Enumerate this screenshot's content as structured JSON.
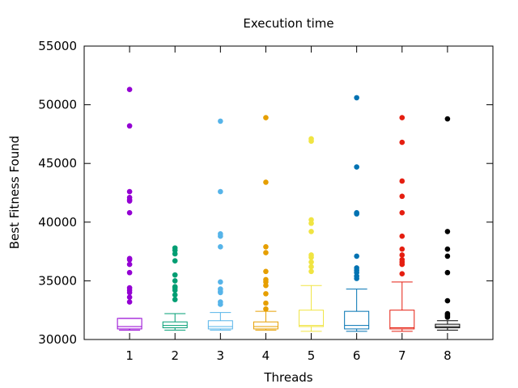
{
  "chart_data": {
    "type": "box",
    "title": "Execution time",
    "xlabel": "Threads",
    "ylabel": "Best Fitness Found",
    "ylim": [
      30000,
      55000
    ],
    "y_ticks": [
      30000,
      35000,
      40000,
      45000,
      50000,
      55000
    ],
    "y_tick_labels": [
      "30000",
      "35000",
      "40000",
      "45000",
      "50000",
      "55000"
    ],
    "grid": false,
    "legend": "none",
    "categories": [
      "1",
      "2",
      "3",
      "4",
      "5",
      "6",
      "7",
      "8"
    ],
    "series": [
      {
        "category": "1",
        "color": "#9400d3",
        "whisker_low": 30800,
        "q1": 30900,
        "median": 31100,
        "q3": 31800,
        "whisker_high": 31800,
        "outliers": [
          51300,
          48200,
          42600,
          42100,
          41900,
          41800,
          40800,
          36900,
          36800,
          36400,
          35700,
          34400,
          34200,
          34000,
          33600,
          33200
        ]
      },
      {
        "category": "2",
        "color": "#009e73",
        "whisker_low": 30800,
        "q1": 31000,
        "median": 31200,
        "q3": 31500,
        "whisker_high": 32200,
        "outliers": [
          37800,
          37600,
          37300,
          36700,
          35500,
          35000,
          34500,
          34400,
          34200,
          33800,
          33400
        ]
      },
      {
        "category": "3",
        "color": "#56b4e9",
        "whisker_low": 30800,
        "q1": 30900,
        "median": 31100,
        "q3": 31600,
        "whisker_high": 32300,
        "outliers": [
          48600,
          42600,
          39000,
          38800,
          37900,
          34900,
          34300,
          34100,
          34000,
          33200,
          33000
        ]
      },
      {
        "category": "4",
        "color": "#e69f00",
        "whisker_low": 30800,
        "q1": 30900,
        "median": 31100,
        "q3": 31500,
        "whisker_high": 32400,
        "outliers": [
          48900,
          43400,
          37900,
          37400,
          35800,
          35100,
          34900,
          34600,
          33900,
          33100,
          32600
        ]
      },
      {
        "category": "5",
        "color": "#f0e442",
        "whisker_low": 30700,
        "q1": 31100,
        "median": 31200,
        "q3": 32500,
        "whisker_high": 34600,
        "outliers": [
          47100,
          46900,
          40200,
          39900,
          39200,
          37200,
          37000,
          36600,
          36200,
          35800
        ]
      },
      {
        "category": "6",
        "color": "#0072b2",
        "whisker_low": 30700,
        "q1": 30900,
        "median": 31200,
        "q3": 32400,
        "whisker_high": 34300,
        "outliers": [
          50600,
          44700,
          40800,
          40700,
          37100,
          36100,
          35900,
          35700,
          35400,
          35200
        ]
      },
      {
        "category": "7",
        "color": "#e51e10",
        "whisker_low": 30700,
        "q1": 30900,
        "median": 31000,
        "q3": 32500,
        "whisker_high": 34900,
        "outliers": [
          48900,
          46800,
          43500,
          42200,
          40800,
          38800,
          37700,
          37200,
          36800,
          36600,
          36400,
          35600
        ]
      },
      {
        "category": "8",
        "color": "#000000",
        "whisker_low": 30800,
        "q1": 31000,
        "median": 31100,
        "q3": 31300,
        "whisker_high": 31600,
        "outliers": [
          48800,
          39200,
          37700,
          37100,
          35700,
          33300,
          32200,
          32100,
          32000,
          31900
        ]
      }
    ]
  }
}
